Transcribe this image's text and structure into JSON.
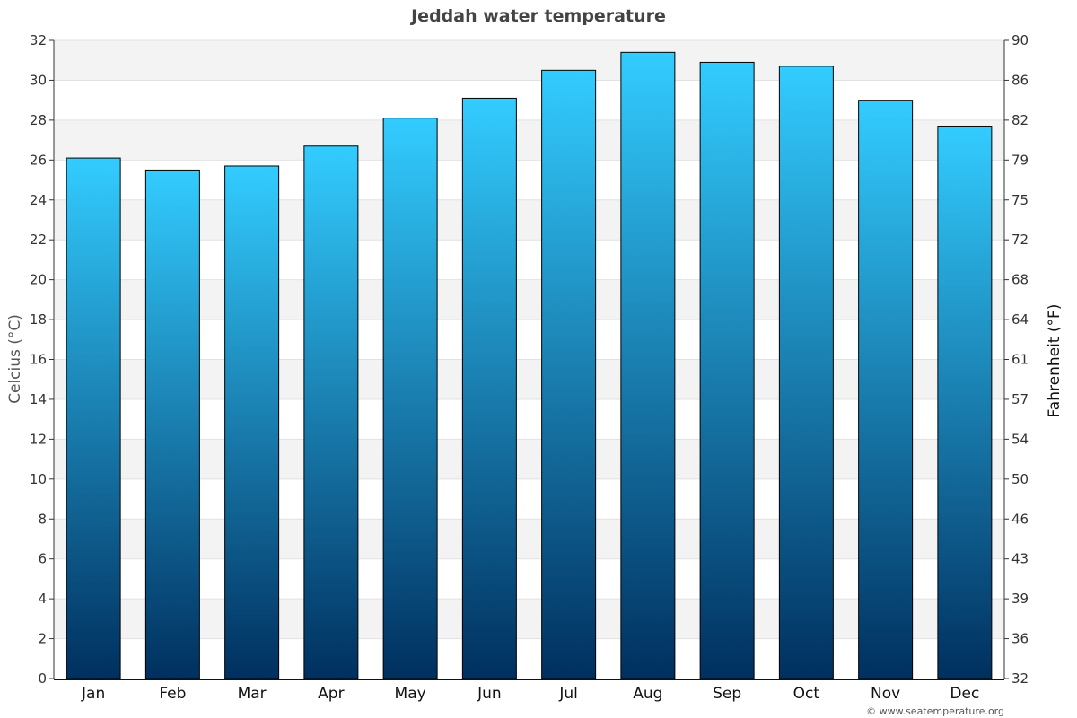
{
  "chart_data": {
    "type": "bar",
    "title": "Jeddah water temperature",
    "categories": [
      "Jan",
      "Feb",
      "Mar",
      "Apr",
      "May",
      "Jun",
      "Jul",
      "Aug",
      "Sep",
      "Oct",
      "Nov",
      "Dec"
    ],
    "values": [
      26.1,
      25.5,
      25.7,
      26.7,
      28.1,
      29.1,
      30.5,
      31.4,
      30.9,
      30.7,
      29.0,
      27.7
    ],
    "ylabel": "Celcius (°C)",
    "y2label": "Fahrenheit (°F)",
    "ylim": [
      0,
      32
    ],
    "yticks": [
      "0",
      "2",
      "4",
      "6",
      "8",
      "10",
      "12",
      "14",
      "16",
      "18",
      "20",
      "22",
      "24",
      "26",
      "28",
      "30",
      "32"
    ],
    "y2ticks": [
      "32",
      "36",
      "39",
      "43",
      "46",
      "50",
      "54",
      "57",
      "61",
      "64",
      "68",
      "72",
      "75",
      "79",
      "82",
      "86",
      "90"
    ],
    "grid": true,
    "bar_gradient": {
      "top": "#33ccff",
      "bottom": "#00305f"
    },
    "band_color": "#f3f3f3"
  },
  "credit": "© www.seatemperature.org"
}
